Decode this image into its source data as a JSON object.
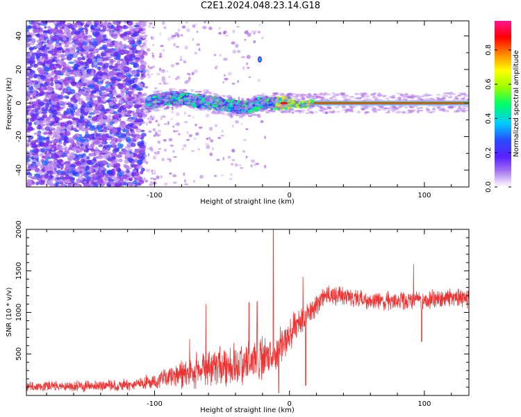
{
  "title": "C2E1.2024.048.23.14.G18",
  "chart_data": [
    {
      "type": "heatmap",
      "xlabel": "Height of straight line (km)",
      "ylabel": "Frequency (Hz)",
      "xlim": [
        -195,
        133
      ],
      "ylim": [
        -50,
        49
      ],
      "xticks": [
        -100,
        0,
        100
      ],
      "yticks": [
        -40,
        -20,
        0,
        20,
        40
      ],
      "colorbar": {
        "label": "Normalized spectral amplitude",
        "range": [
          0,
          0.97
        ],
        "ticks": [
          0.0,
          0.2,
          0.4,
          0.6,
          0.8
        ],
        "colormap": [
          "#ffffff",
          "#c8a2f0",
          "#8a2be2",
          "#3333ff",
          "#00c8ff",
          "#00ff66",
          "#9aff00",
          "#ffff00",
          "#ff8800",
          "#ff0000",
          "#ff1493"
        ]
      },
      "features": {
        "noise_region_x": [
          -195,
          -108
        ],
        "sparse_region_x": [
          -108,
          -40
        ],
        "signal_ridge": [
          {
            "x": -106,
            "y": 0
          },
          {
            "x": -95,
            "y": 2
          },
          {
            "x": -85,
            "y": 3
          },
          {
            "x": -75,
            "y": 2
          },
          {
            "x": -65,
            "y": 1
          },
          {
            "x": -55,
            "y": 0
          },
          {
            "x": -45,
            "y": -1
          },
          {
            "x": -35,
            "y": -3
          },
          {
            "x": -28,
            "y": -2
          },
          {
            "x": -20,
            "y": 0
          },
          {
            "x": -10,
            "y": 0
          },
          {
            "x": 0,
            "y": 0
          },
          {
            "x": 10,
            "y": -1
          },
          {
            "x": 18,
            "y": 0
          },
          {
            "x": 133,
            "y": 0
          }
        ],
        "spot": {
          "x": -22,
          "y": 26
        }
      }
    },
    {
      "type": "line",
      "xlabel": "Height of straight line (km)",
      "ylabel": "SNR (10 * v/v)",
      "xlim": [
        -195,
        133
      ],
      "ylim": [
        0,
        2000
      ],
      "xticks": [
        -100,
        0,
        100
      ],
      "yticks": [
        500,
        1000,
        1500,
        2000
      ],
      "color": "#ee3333",
      "envelope": [
        {
          "x": -195,
          "mean": 110,
          "noise": 70
        },
        {
          "x": -120,
          "mean": 120,
          "noise": 80
        },
        {
          "x": -100,
          "mean": 170,
          "noise": 110
        },
        {
          "x": -80,
          "mean": 260,
          "noise": 200
        },
        {
          "x": -60,
          "mean": 330,
          "noise": 260
        },
        {
          "x": -40,
          "mean": 380,
          "noise": 300
        },
        {
          "x": -20,
          "mean": 450,
          "noise": 320
        },
        {
          "x": -8,
          "mean": 560,
          "noise": 300
        },
        {
          "x": 0,
          "mean": 750,
          "noise": 250
        },
        {
          "x": 10,
          "mean": 880,
          "noise": 200
        },
        {
          "x": 25,
          "mean": 1200,
          "noise": 140
        },
        {
          "x": 40,
          "mean": 1200,
          "noise": 130
        },
        {
          "x": 60,
          "mean": 1130,
          "noise": 130
        },
        {
          "x": 100,
          "mean": 1150,
          "noise": 140
        },
        {
          "x": 133,
          "mean": 1180,
          "noise": 140
        }
      ],
      "spikes": [
        {
          "x": -12,
          "value": 2000
        },
        {
          "x": -74,
          "value": 680
        },
        {
          "x": -62,
          "value": 1100
        },
        {
          "x": -30,
          "value": 1120
        },
        {
          "x": -24,
          "value": 1130
        },
        {
          "x": 10,
          "value": 1430
        },
        {
          "x": 92,
          "value": 1580
        }
      ],
      "dips": [
        {
          "x": -8,
          "value": 30
        },
        {
          "x": 12,
          "value": 120
        },
        {
          "x": 98,
          "value": 650
        }
      ]
    }
  ]
}
